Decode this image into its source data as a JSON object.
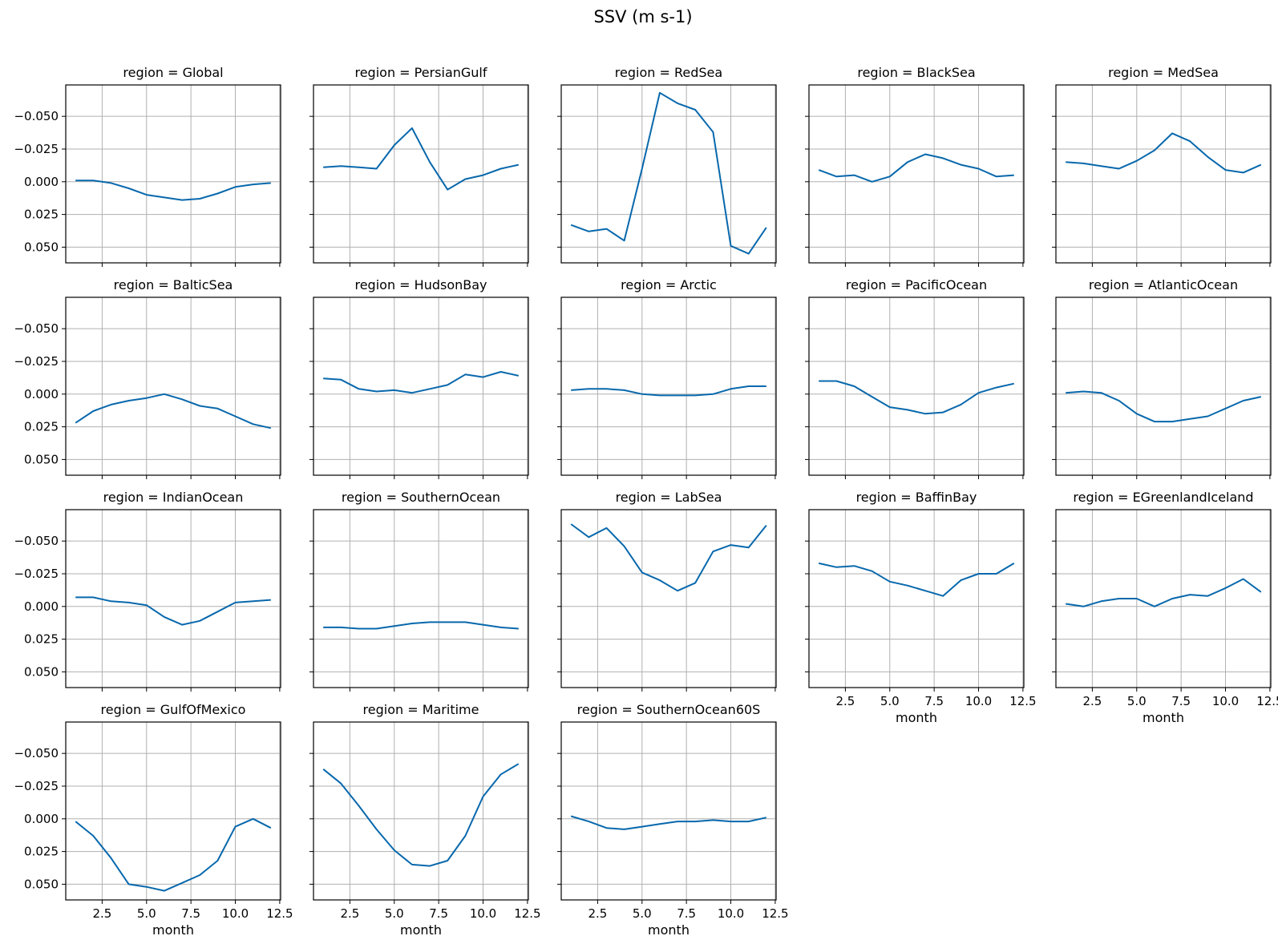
{
  "title": "SSV (m s-1)",
  "line_color": "#0868ac",
  "chart_data": {
    "type": "line",
    "xlabel": "month",
    "xlim": [
      0.45,
      12.55
    ],
    "ylim": [
      0.062,
      -0.074
    ],
    "y_inverted": true,
    "grid": true,
    "x_ticks": [
      2.5,
      5.0,
      7.5,
      10.0,
      12.5
    ],
    "x_tick_labels": [
      "2.5",
      "5.0",
      "7.5",
      "10.0",
      "12.5"
    ],
    "y_ticks": [
      -0.05,
      -0.025,
      0.0,
      0.025,
      0.05
    ],
    "y_tick_labels": [
      "−0.050",
      "−0.025",
      "0.000",
      "0.025",
      "0.050"
    ],
    "x": [
      1,
      2,
      3,
      4,
      5,
      6,
      7,
      8,
      9,
      10,
      11,
      12
    ],
    "panels": [
      {
        "title": "region = Global",
        "values": [
          -0.001,
          -0.001,
          0.001,
          0.005,
          0.01,
          0.012,
          0.014,
          0.013,
          0.009,
          0.004,
          0.002,
          0.001
        ]
      },
      {
        "title": "region = PersianGulf",
        "values": [
          -0.011,
          -0.012,
          -0.011,
          -0.01,
          -0.028,
          -0.041,
          -0.015,
          0.006,
          -0.002,
          -0.005,
          -0.01,
          -0.013
        ]
      },
      {
        "title": "region = RedSea",
        "values": [
          0.033,
          0.038,
          0.036,
          0.045,
          -0.01,
          -0.068,
          -0.06,
          -0.055,
          -0.038,
          0.049,
          0.055,
          0.035
        ]
      },
      {
        "title": "region = BlackSea",
        "values": [
          -0.009,
          -0.004,
          -0.005,
          0.0,
          -0.004,
          -0.015,
          -0.021,
          -0.018,
          -0.013,
          -0.01,
          -0.004,
          -0.005
        ]
      },
      {
        "title": "region = MedSea",
        "values": [
          -0.015,
          -0.014,
          -0.012,
          -0.01,
          -0.016,
          -0.024,
          -0.037,
          -0.031,
          -0.019,
          -0.009,
          -0.007,
          -0.013
        ]
      },
      {
        "title": "region = BalticSea",
        "values": [
          0.022,
          0.013,
          0.008,
          0.005,
          0.003,
          0.0,
          0.004,
          0.009,
          0.011,
          0.017,
          0.023,
          0.026
        ]
      },
      {
        "title": "region = HudsonBay",
        "values": [
          -0.012,
          -0.011,
          -0.004,
          -0.002,
          -0.003,
          -0.001,
          -0.004,
          -0.007,
          -0.015,
          -0.013,
          -0.017,
          -0.014
        ]
      },
      {
        "title": "region = Arctic",
        "values": [
          -0.003,
          -0.004,
          -0.004,
          -0.003,
          0.0,
          0.001,
          0.001,
          0.001,
          0.0,
          -0.004,
          -0.006,
          -0.006
        ]
      },
      {
        "title": "region = PacificOcean",
        "values": [
          -0.01,
          -0.01,
          -0.006,
          0.002,
          0.01,
          0.012,
          0.015,
          0.014,
          0.008,
          -0.001,
          -0.005,
          -0.008
        ]
      },
      {
        "title": "region = AtlanticOcean",
        "values": [
          -0.001,
          -0.002,
          -0.001,
          0.005,
          0.015,
          0.021,
          0.021,
          0.019,
          0.017,
          0.011,
          0.005,
          0.002
        ]
      },
      {
        "title": "region = IndianOcean",
        "values": [
          -0.007,
          -0.007,
          -0.004,
          -0.003,
          -0.001,
          0.008,
          0.014,
          0.011,
          0.004,
          -0.003,
          -0.004,
          -0.005
        ]
      },
      {
        "title": "region = SouthernOcean",
        "values": [
          0.016,
          0.016,
          0.017,
          0.017,
          0.015,
          0.013,
          0.012,
          0.012,
          0.012,
          0.014,
          0.016,
          0.017
        ]
      },
      {
        "title": "region = LabSea",
        "values": [
          -0.063,
          -0.053,
          -0.06,
          -0.046,
          -0.026,
          -0.02,
          -0.012,
          -0.018,
          -0.042,
          -0.047,
          -0.045,
          -0.062
        ]
      },
      {
        "title": "region = BaffinBay",
        "values": [
          -0.033,
          -0.03,
          -0.031,
          -0.027,
          -0.019,
          -0.016,
          -0.012,
          -0.008,
          -0.02,
          -0.025,
          -0.025,
          -0.033
        ]
      },
      {
        "title": "region = EGreenlandIceland",
        "values": [
          -0.002,
          0.0,
          -0.004,
          -0.006,
          -0.006,
          0.0,
          -0.006,
          -0.009,
          -0.008,
          -0.014,
          -0.021,
          -0.011
        ]
      },
      {
        "title": "region = GulfOfMexico",
        "values": [
          0.002,
          0.013,
          0.03,
          0.05,
          0.052,
          0.055,
          0.049,
          0.043,
          0.032,
          0.006,
          0.0,
          0.007
        ]
      },
      {
        "title": "region = Maritime",
        "values": [
          -0.038,
          -0.027,
          -0.01,
          0.008,
          0.024,
          0.035,
          0.036,
          0.032,
          0.013,
          -0.017,
          -0.034,
          -0.042
        ]
      },
      {
        "title": "region = SouthernOcean60S",
        "values": [
          -0.002,
          0.002,
          0.007,
          0.008,
          0.006,
          0.004,
          0.002,
          0.002,
          0.001,
          0.002,
          0.002,
          -0.001
        ]
      }
    ]
  }
}
